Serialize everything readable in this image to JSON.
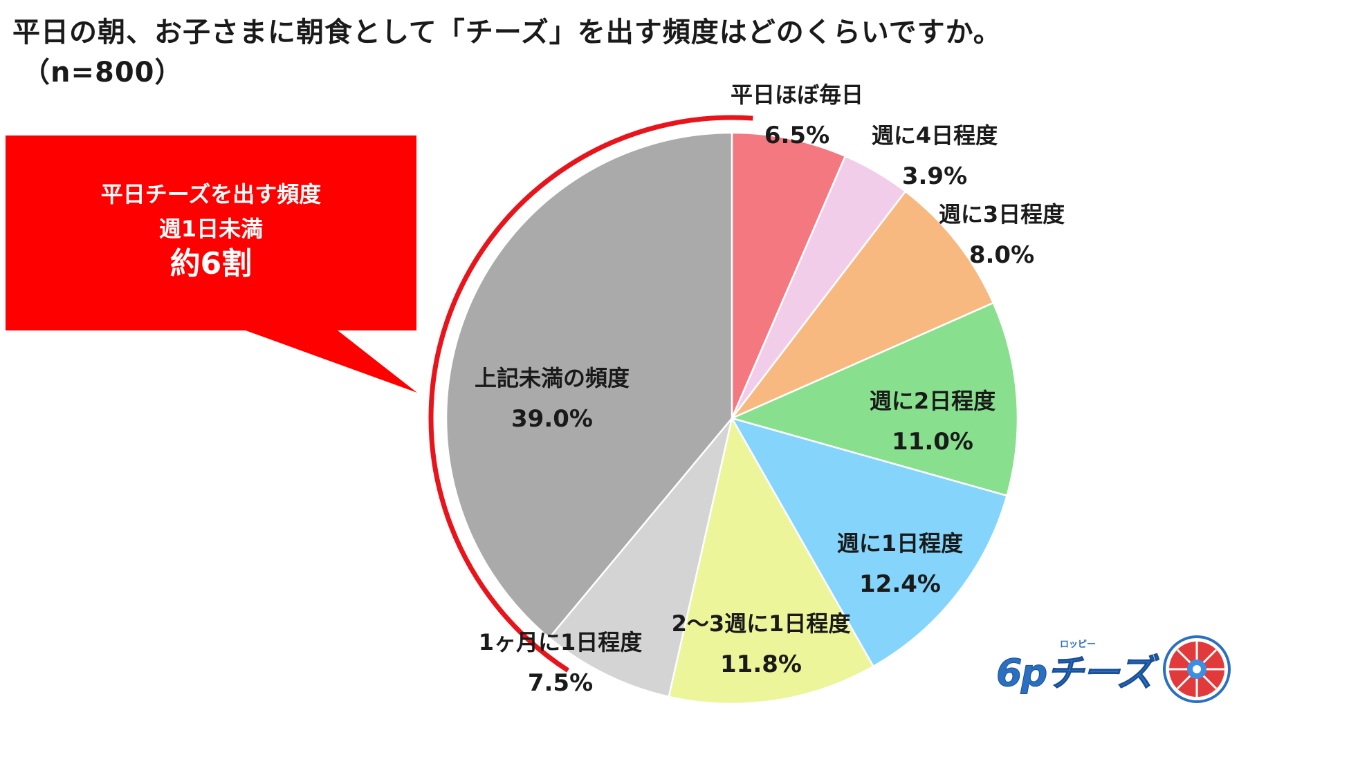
{
  "title": {
    "line1": "平日の朝、お子さまに朝食として「チーズ」を出す頻度はどのくらいですか。",
    "line2": "（n=800）"
  },
  "callout": {
    "line1": "平日チーズを出す頻度",
    "line2": "週1日未満",
    "line3": "約6割",
    "color": "#ff0000"
  },
  "highlight_arc_color": "#e8141c",
  "logo": {
    "word": "6pチーズ",
    "sub": "ロッピー"
  },
  "chart_data": {
    "type": "pie",
    "start": "12 o'clock, clockwise",
    "slices": [
      {
        "label": "平日ほぼ毎日",
        "value": 6.5,
        "display": "6.5%",
        "color": "#f47880"
      },
      {
        "label": "週に4日程度",
        "value": 3.9,
        "display": "3.9%",
        "color": "#f2cdea"
      },
      {
        "label": "週に3日程度",
        "value": 8.0,
        "display": "8.0%",
        "color": "#f8b980"
      },
      {
        "label": "週に2日程度",
        "value": 11.0,
        "display": "11.0%",
        "color": "#88e08e"
      },
      {
        "label": "週に1日程度",
        "value": 12.4,
        "display": "12.4%",
        "color": "#84d4fb"
      },
      {
        "label": "2～3週に1日程度",
        "value": 11.8,
        "display": "11.8%",
        "color": "#edf59a"
      },
      {
        "label": "1ヶ月に1日程度",
        "value": 7.5,
        "display": "7.5%",
        "color": "#d4d4d4"
      },
      {
        "label": "上記未満の頻度",
        "value": 39.0,
        "display": "39.0%",
        "color": "#aaaaaa"
      }
    ]
  }
}
